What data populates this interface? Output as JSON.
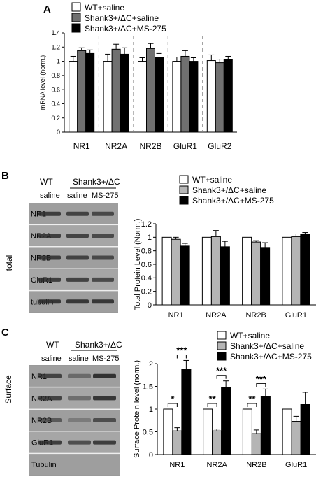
{
  "panels": {
    "A": {
      "letter": "A"
    },
    "B": {
      "letter": "B"
    },
    "C": {
      "letter": "C"
    }
  },
  "legend": [
    {
      "name": "WT+saline",
      "color": "#ffffff"
    },
    {
      "name": "Shank3+/ΔC+saline",
      "color_A": "#707070",
      "color": "#b5b5b5"
    },
    {
      "name": "Shank3+/ΔC+MS-275",
      "color": "#000000"
    }
  ],
  "blot_labels": {
    "wt": "WT",
    "shank": "Shank3+/ΔC",
    "saline": "saline",
    "ms275": "MS-275",
    "total": "total",
    "surface": "Surface"
  },
  "blot_rows_B": [
    "NR1",
    "NR2A",
    "NR2B",
    "GluR1",
    "tubulin"
  ],
  "blot_rows_C": [
    "NR1",
    "NR2A",
    "NR2B",
    "GluR1",
    "Tubulin"
  ],
  "chart_data": [
    {
      "type": "bar",
      "panel": "A",
      "categories": [
        "NR1",
        "NR2A",
        "NR2B",
        "GluR1",
        "GluR2"
      ],
      "ylabel": "mRNA level (norm.)",
      "ylim": [
        0,
        1.4
      ],
      "yticks": [
        "0",
        "0.2",
        "0.4",
        "0.6",
        "0.8",
        "1",
        "1.2",
        "1.4"
      ],
      "series": [
        {
          "name": "WT+saline",
          "values": [
            1.0,
            1.0,
            1.0,
            1.0,
            1.01
          ],
          "errors": [
            0.07,
            0.1,
            0.05,
            0.06,
            0.08
          ]
        },
        {
          "name": "Shank3+/ΔC+saline",
          "values": [
            1.15,
            1.17,
            1.18,
            1.07,
            0.98
          ],
          "errors": [
            0.04,
            0.07,
            0.07,
            0.08,
            0.05
          ]
        },
        {
          "name": "Shank3+/ΔC+MS-275",
          "values": [
            1.11,
            1.1,
            1.05,
            1.0,
            1.03
          ],
          "errors": [
            0.05,
            0.09,
            0.06,
            0.05,
            0.04
          ]
        }
      ]
    },
    {
      "type": "bar",
      "panel": "B",
      "categories": [
        "NR1",
        "NR2A",
        "NR2B",
        "GluR1"
      ],
      "ylabel": "Total Protein Level (Norm.)",
      "ylim": [
        0,
        1.2
      ],
      "yticks": [
        "0",
        "0.2",
        "0.4",
        "0.6",
        "0.8",
        "1",
        "1.2"
      ],
      "series": [
        {
          "name": "WT+saline",
          "values": [
            1.0,
            1.0,
            1.0,
            1.0
          ],
          "errors": [
            0,
            0,
            0,
            0
          ]
        },
        {
          "name": "Shank3+/ΔC+saline",
          "values": [
            0.97,
            1.01,
            0.93,
            1.01
          ],
          "errors": [
            0.03,
            0.09,
            0.02,
            0.04
          ]
        },
        {
          "name": "Shank3+/ΔC+MS-275",
          "values": [
            0.87,
            0.86,
            0.85,
            1.04
          ],
          "errors": [
            0.04,
            0.08,
            0.07,
            0.03
          ]
        }
      ]
    },
    {
      "type": "bar",
      "panel": "C",
      "categories": [
        "NR1",
        "NR2A",
        "NR2B",
        "GluR1"
      ],
      "ylabel": "Surface Protein level (norm.)",
      "ylim": [
        0,
        2
      ],
      "yticks": [
        "0",
        "0.5",
        "1",
        "1.5",
        "2"
      ],
      "series": [
        {
          "name": "WT+saline",
          "values": [
            1.0,
            1.0,
            1.0,
            1.0
          ],
          "errors": [
            0,
            0,
            0,
            0
          ]
        },
        {
          "name": "Shank3+/ΔC+saline",
          "values": [
            0.52,
            0.52,
            0.46,
            0.73
          ],
          "errors": [
            0.07,
            0.04,
            0.08,
            0.11
          ]
        },
        {
          "name": "Shank3+/ΔC+MS-275",
          "values": [
            1.87,
            1.47,
            1.28,
            1.1
          ],
          "errors": [
            0.2,
            0.15,
            0.16,
            0.27
          ]
        }
      ],
      "annotations": [
        {
          "category": "NR1",
          "pair": [
            0,
            1
          ],
          "text": "*"
        },
        {
          "category": "NR1",
          "pair": [
            1,
            2
          ],
          "text": "***"
        },
        {
          "category": "NR2A",
          "pair": [
            0,
            1
          ],
          "text": "**"
        },
        {
          "category": "NR2A",
          "pair": [
            1,
            2
          ],
          "text": "***"
        },
        {
          "category": "NR2B",
          "pair": [
            0,
            1
          ],
          "text": "**"
        },
        {
          "category": "NR2B",
          "pair": [
            1,
            2
          ],
          "text": "***"
        }
      ]
    }
  ]
}
